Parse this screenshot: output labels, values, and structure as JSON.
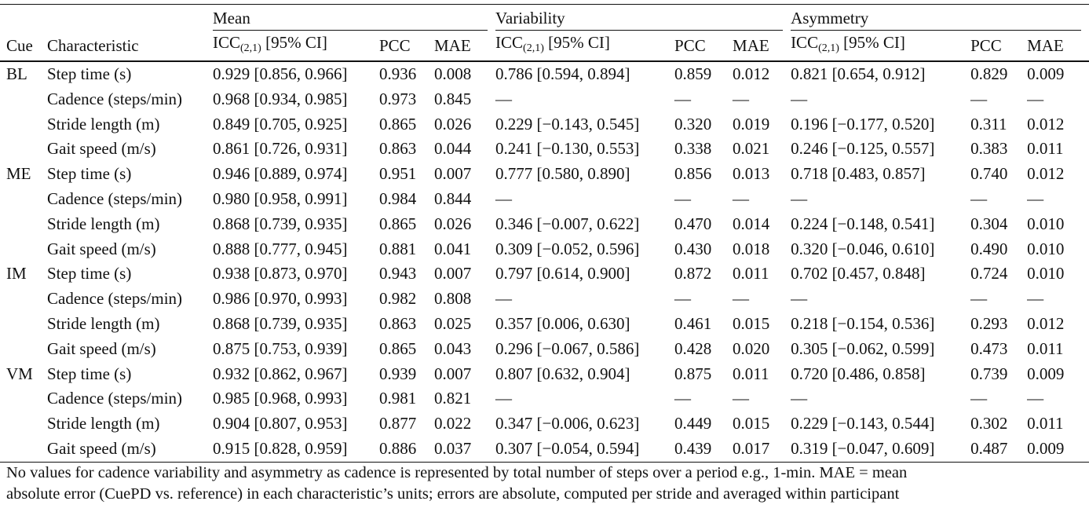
{
  "groups": {
    "mean": "Mean",
    "variability": "Variability",
    "asymmetry": "Asymmetry"
  },
  "headers": {
    "cue": "Cue",
    "characteristic": "Characteristic",
    "icc_prefix": "ICC",
    "icc_sub": "(2,1)",
    "icc_suffix": " [95% CI]",
    "pcc": "PCC",
    "mae": "MAE"
  },
  "rows": [
    {
      "cue": "BL",
      "char": "Step time (s)",
      "m_icc": "0.929 [0.856, 0.966]",
      "m_pcc": "0.936",
      "m_mae": "0.008",
      "v_icc": "0.786 [0.594, 0.894]",
      "v_pcc": "0.859",
      "v_mae": "0.012",
      "a_icc": "0.821 [0.654, 0.912]",
      "a_pcc": "0.829",
      "a_mae": "0.009"
    },
    {
      "cue": "",
      "char": "Cadence (steps/min)",
      "m_icc": "0.968 [0.934, 0.985]",
      "m_pcc": "0.973",
      "m_mae": "0.845",
      "v_icc": "—",
      "v_pcc": "—",
      "v_mae": "—",
      "a_icc": "—",
      "a_pcc": "—",
      "a_mae": "—"
    },
    {
      "cue": "",
      "char": "Stride length (m)",
      "m_icc": "0.849 [0.705, 0.925]",
      "m_pcc": "0.865",
      "m_mae": "0.026",
      "v_icc": "0.229 [−0.143, 0.545]",
      "v_pcc": "0.320",
      "v_mae": "0.019",
      "a_icc": "0.196 [−0.177, 0.520]",
      "a_pcc": "0.311",
      "a_mae": "0.012"
    },
    {
      "cue": "",
      "char": "Gait speed (m/s)",
      "m_icc": "0.861 [0.726, 0.931]",
      "m_pcc": "0.863",
      "m_mae": "0.044",
      "v_icc": "0.241 [−0.130, 0.553]",
      "v_pcc": "0.338",
      "v_mae": "0.021",
      "a_icc": "0.246 [−0.125, 0.557]",
      "a_pcc": "0.383",
      "a_mae": "0.011"
    },
    {
      "cue": "ME",
      "char": "Step time (s)",
      "m_icc": "0.946 [0.889, 0.974]",
      "m_pcc": "0.951",
      "m_mae": "0.007",
      "v_icc": "0.777 [0.580, 0.890]",
      "v_pcc": "0.856",
      "v_mae": "0.013",
      "a_icc": "0.718 [0.483, 0.857]",
      "a_pcc": "0.740",
      "a_mae": "0.012"
    },
    {
      "cue": "",
      "char": "Cadence (steps/min)",
      "m_icc": "0.980 [0.958, 0.991]",
      "m_pcc": "0.984",
      "m_mae": "0.844",
      "v_icc": "—",
      "v_pcc": "—",
      "v_mae": "—",
      "a_icc": "—",
      "a_pcc": "—",
      "a_mae": "—"
    },
    {
      "cue": "",
      "char": "Stride length (m)",
      "m_icc": "0.868 [0.739, 0.935]",
      "m_pcc": "0.865",
      "m_mae": "0.026",
      "v_icc": "0.346 [−0.007, 0.622]",
      "v_pcc": "0.470",
      "v_mae": "0.014",
      "a_icc": "0.224 [−0.148, 0.541]",
      "a_pcc": "0.304",
      "a_mae": "0.010"
    },
    {
      "cue": "",
      "char": "Gait speed (m/s)",
      "m_icc": "0.888 [0.777, 0.945]",
      "m_pcc": "0.881",
      "m_mae": "0.041",
      "v_icc": "0.309 [−0.052, 0.596]",
      "v_pcc": "0.430",
      "v_mae": "0.018",
      "a_icc": "0.320 [−0.046, 0.610]",
      "a_pcc": "0.490",
      "a_mae": "0.010"
    },
    {
      "cue": "IM",
      "char": "Step time (s)",
      "m_icc": "0.938 [0.873, 0.970]",
      "m_pcc": "0.943",
      "m_mae": "0.007",
      "v_icc": "0.797 [0.614, 0.900]",
      "v_pcc": "0.872",
      "v_mae": "0.011",
      "a_icc": "0.702 [0.457, 0.848]",
      "a_pcc": "0.724",
      "a_mae": "0.010"
    },
    {
      "cue": "",
      "char": "Cadence (steps/min)",
      "m_icc": "0.986 [0.970, 0.993]",
      "m_pcc": "0.982",
      "m_mae": "0.808",
      "v_icc": "—",
      "v_pcc": "—",
      "v_mae": "—",
      "a_icc": "—",
      "a_pcc": "—",
      "a_mae": "—"
    },
    {
      "cue": "",
      "char": "Stride length (m)",
      "m_icc": "0.868 [0.739, 0.935]",
      "m_pcc": "0.863",
      "m_mae": "0.025",
      "v_icc": "0.357 [0.006, 0.630]",
      "v_pcc": "0.461",
      "v_mae": "0.015",
      "a_icc": "0.218 [−0.154, 0.536]",
      "a_pcc": "0.293",
      "a_mae": "0.012"
    },
    {
      "cue": "",
      "char": "Gait speed (m/s)",
      "m_icc": "0.875 [0.753, 0.939]",
      "m_pcc": "0.865",
      "m_mae": "0.043",
      "v_icc": "0.296 [−0.067, 0.586]",
      "v_pcc": "0.428",
      "v_mae": "0.020",
      "a_icc": "0.305 [−0.062, 0.599]",
      "a_pcc": "0.473",
      "a_mae": "0.011"
    },
    {
      "cue": "VM",
      "char": "Step time (s)",
      "m_icc": "0.932 [0.862, 0.967]",
      "m_pcc": "0.939",
      "m_mae": "0.007",
      "v_icc": "0.807 [0.632, 0.904]",
      "v_pcc": "0.875",
      "v_mae": "0.011",
      "a_icc": "0.720 [0.486, 0.858]",
      "a_pcc": "0.739",
      "a_mae": "0.009"
    },
    {
      "cue": "",
      "char": "Cadence (steps/min)",
      "m_icc": "0.985 [0.968, 0.993]",
      "m_pcc": "0.981",
      "m_mae": "0.821",
      "v_icc": "—",
      "v_pcc": "—",
      "v_mae": "—",
      "a_icc": "—",
      "a_pcc": "—",
      "a_mae": "—"
    },
    {
      "cue": "",
      "char": "Stride length (m)",
      "m_icc": "0.904 [0.807, 0.953]",
      "m_pcc": "0.877",
      "m_mae": "0.022",
      "v_icc": "0.347 [−0.006, 0.623]",
      "v_pcc": "0.449",
      "v_mae": "0.015",
      "a_icc": "0.229 [−0.143, 0.544]",
      "a_pcc": "0.302",
      "a_mae": "0.011"
    },
    {
      "cue": "",
      "char": "Gait speed (m/s)",
      "m_icc": "0.915 [0.828, 0.959]",
      "m_pcc": "0.886",
      "m_mae": "0.037",
      "v_icc": "0.307 [−0.054, 0.594]",
      "v_pcc": "0.439",
      "v_mae": "0.017",
      "a_icc": "0.319 [−0.047, 0.609]",
      "a_pcc": "0.487",
      "a_mae": "0.009"
    }
  ],
  "note": {
    "line1": "No values for cadence variability and asymmetry as cadence is represented by total number of steps over a period e.g., 1-min. MAE = mean",
    "line2": "absolute error (CuePD vs. reference) in each characteristic’s units; errors are absolute, computed per stride and averaged within participant"
  }
}
